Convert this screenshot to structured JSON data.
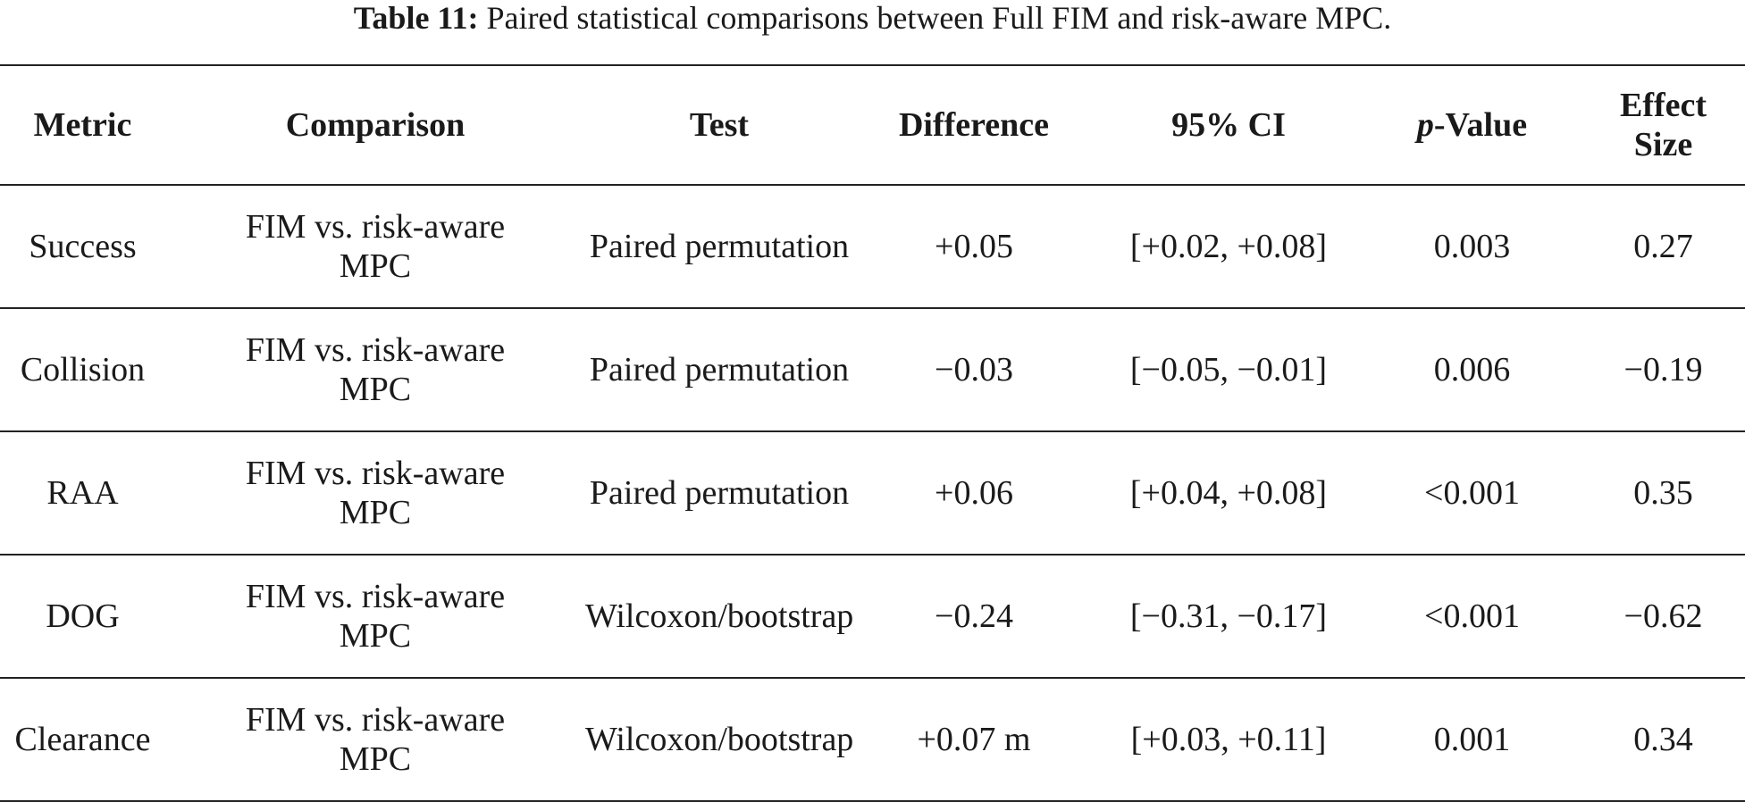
{
  "caption": {
    "label": "Table 11:",
    "text": "Paired statistical comparisons between Full FIM and risk-aware MPC."
  },
  "table": {
    "headers": {
      "metric": "Metric",
      "comparison": "Comparison",
      "test": "Test",
      "difference": "Difference",
      "ci": "95% CI",
      "pvalue_italic": "p",
      "pvalue_rest": "-Value",
      "effect_line1": "Effect",
      "effect_line2": "Size"
    },
    "rows": [
      {
        "metric": "Success",
        "comparison_line1": "FIM vs. risk-aware",
        "comparison_line2": "MPC",
        "test": "Paired permutation",
        "difference": "+0.05",
        "ci": "[+0.02, +0.08]",
        "pvalue": "0.003",
        "effect": "0.27"
      },
      {
        "metric": "Collision",
        "comparison_line1": "FIM vs. risk-aware",
        "comparison_line2": "MPC",
        "test": "Paired permutation",
        "difference": "−0.03",
        "ci": "[−0.05, −0.01]",
        "pvalue": "0.006",
        "effect": "−0.19"
      },
      {
        "metric": "RAA",
        "comparison_line1": "FIM vs. risk-aware",
        "comparison_line2": "MPC",
        "test": "Paired permutation",
        "difference": "+0.06",
        "ci": "[+0.04, +0.08]",
        "pvalue": "<0.001",
        "effect": "0.35"
      },
      {
        "metric": "DOG",
        "comparison_line1": "FIM vs. risk-aware",
        "comparison_line2": "MPC",
        "test": "Wilcoxon/bootstrap",
        "difference": "−0.24",
        "ci": "[−0.31, −0.17]",
        "pvalue": "<0.001",
        "effect": "−0.62"
      },
      {
        "metric": "Clearance",
        "comparison_line1": "FIM vs. risk-aware",
        "comparison_line2": "MPC",
        "test": "Wilcoxon/bootstrap",
        "difference": "+0.07 m",
        "ci": "[+0.03, +0.11]",
        "pvalue": "0.001",
        "effect": "0.34"
      }
    ]
  }
}
